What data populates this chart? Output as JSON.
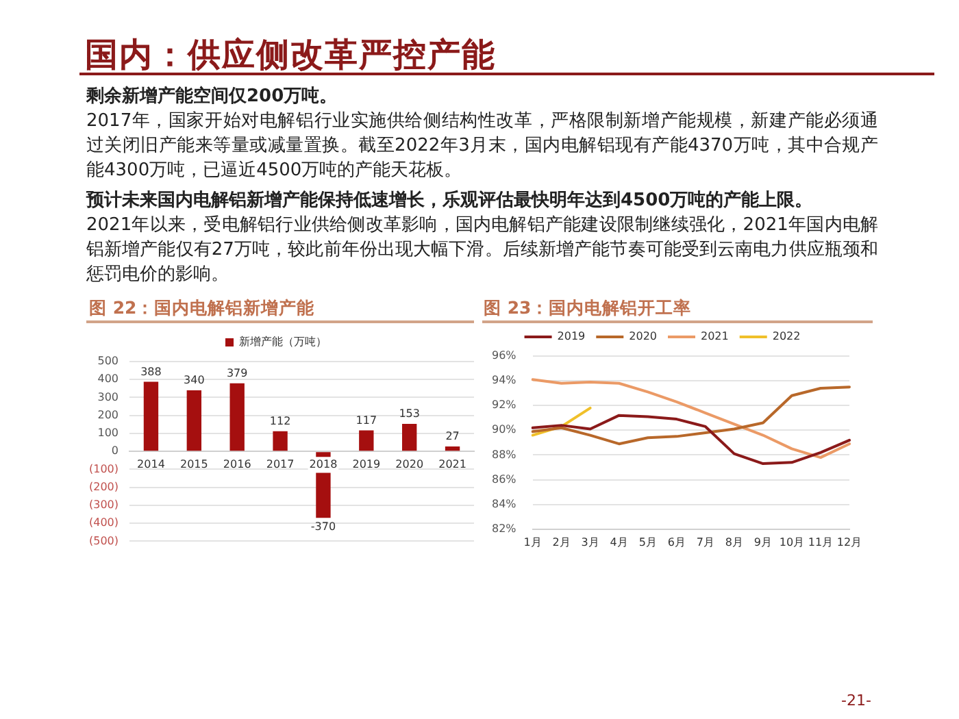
{
  "chart_data": [
    {
      "type": "other",
      "title": "国内：供应侧改革严控产能",
      "annotations": [
        "剩余新增产能空间仅200万吨。",
        "2017年，国家开始对电解铝行业实施供给侧结构性改革，严格限制新增产能规模，新建产能必须通过关闭旧产能来等量或减量置换。截至2022年3月末，国内电解铝现有产能4370万吨，其中合规产能4300万吨，已逼近4500万吨的产能天花板。",
        "预计未来国内电解铝新增产能保持低速增长，乐观评估最快明年达到4500万吨的产能上限。",
        "2021年以来，受电解铝行业供给侧改革影响，国内电解铝产能建设限制继续强化，2021年国内电解铝新增产能仅有27万吨，较此前年份出现大幅下滑。后续新增产能节奏可能受到云南电力供应瓶颈和惩罚电价的影响。",
        "-21-"
      ]
    },
    {
      "type": "bar",
      "title": "图 22：国内电解铝新增产能",
      "categories": [
        "2014",
        "2015",
        "2016",
        "2017",
        "2018",
        "2019",
        "2020",
        "2021"
      ],
      "series": [
        {
          "name": "新增产能（万吨）",
          "color": "#a50f0f",
          "values": [
            388,
            340,
            379,
            112,
            -370,
            117,
            153,
            27
          ]
        }
      ],
      "ylim": [
        -500,
        500
      ],
      "yticks": [
        {
          "value": -500,
          "label": "(500)"
        },
        {
          "value": -400,
          "label": "(400)"
        },
        {
          "value": -300,
          "label": "(300)"
        },
        {
          "value": -200,
          "label": "(200)"
        },
        {
          "value": -100,
          "label": "(100)"
        },
        0,
        100,
        200,
        300,
        400,
        500
      ],
      "grid": "y",
      "legend": "top",
      "data_labels": true
    },
    {
      "type": "line",
      "title": "图 23：国内电解铝开工率",
      "categories": [
        "1月",
        "2月",
        "3月",
        "4月",
        "5月",
        "6月",
        "7月",
        "8月",
        "9月",
        "10月",
        "11月",
        "12月"
      ],
      "series": [
        {
          "name": "2019",
          "color": "#8b1a1a",
          "values": [
            90.2,
            90.4,
            90.1,
            91.2,
            91.1,
            90.9,
            90.3,
            88.1,
            87.3,
            87.4,
            88.2,
            89.2
          ]
        },
        {
          "name": "2020",
          "color": "#b8682a",
          "values": [
            89.9,
            90.2,
            89.6,
            88.9,
            89.4,
            89.5,
            89.8,
            90.1,
            90.6,
            92.8,
            93.4,
            93.5
          ]
        },
        {
          "name": "2021",
          "color": "#eb9a66",
          "values": [
            94.1,
            93.8,
            93.9,
            93.8,
            93.1,
            92.3,
            91.4,
            90.5,
            89.6,
            88.5,
            87.8,
            88.9
          ]
        },
        {
          "name": "2022",
          "color": "#f0c02a",
          "values": [
            89.6,
            90.3,
            91.8,
            null,
            null,
            null,
            null,
            null,
            null,
            null,
            null,
            null
          ]
        }
      ],
      "ylim": [
        82,
        96
      ],
      "yticks": [
        {
          "value": 82,
          "label": "82%"
        },
        {
          "value": 84,
          "label": "84%"
        },
        {
          "value": 86,
          "label": "86%"
        },
        {
          "value": 88,
          "label": "88%"
        },
        {
          "value": 90,
          "label": "90%"
        },
        {
          "value": 92,
          "label": "92%"
        },
        {
          "value": 94,
          "label": "94%"
        },
        {
          "value": 96,
          "label": "96%"
        }
      ],
      "grid": "y",
      "legend": "top",
      "marker": "none"
    }
  ]
}
